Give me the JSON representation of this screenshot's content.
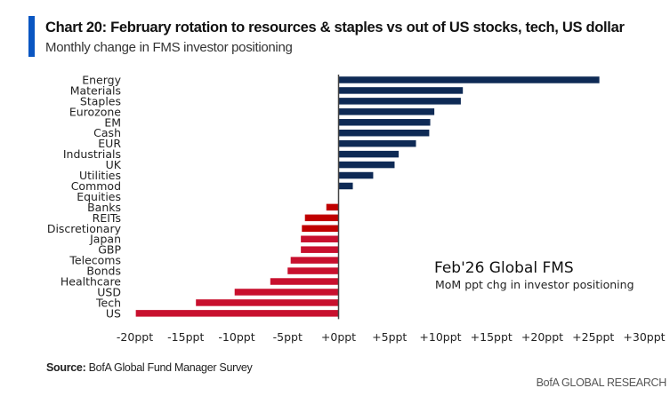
{
  "header": {
    "title": "Chart 20: February rotation to resources & staples vs out of US stocks, tech, US dollar",
    "subtitle": "Monthly change in FMS investor positioning"
  },
  "footer": {
    "source_label": "Source:",
    "source_text": "BofA Global Fund Manager Survey",
    "brand": "BofA GLOBAL RESEARCH"
  },
  "colors": {
    "positive": "#0e2a55",
    "negative_dark": "#c00000",
    "negative": "#c8102e",
    "axis": "#444444",
    "accent": "#0a56c2"
  },
  "chart_data": {
    "type": "bar",
    "orientation": "horizontal",
    "title": "Chart 20: February rotation to resources & staples vs out of US stocks, tech, US dollar",
    "subtitle": "Monthly change in FMS investor positioning",
    "annotation": {
      "title": "Feb'26 Global FMS",
      "subtitle": "MoM ppt chg in investor positioning",
      "placement": "bottom-right"
    },
    "categories": [
      "Energy",
      "Materials",
      "Staples",
      "Eurozone",
      "EM",
      "Cash",
      "EUR",
      "Industrials",
      "UK",
      "Utilities",
      "Commod",
      "Equities",
      "Banks",
      "REITs",
      "Discretionary",
      "Japan",
      "GBP",
      "Telecoms",
      "Bonds",
      "Healthcare",
      "USD",
      "Tech",
      "US"
    ],
    "values": [
      25.6,
      12.2,
      12.0,
      9.4,
      9.0,
      8.9,
      7.6,
      5.9,
      5.5,
      3.4,
      1.4,
      0.0,
      -1.2,
      -3.3,
      -3.6,
      -3.7,
      -3.7,
      -4.7,
      -5.0,
      -6.7,
      -10.2,
      -14.0,
      -19.9
    ],
    "unit": "ppt",
    "xlabel": "",
    "ylabel": "",
    "xlim": [
      -20,
      30
    ],
    "xticks": [
      -20,
      -15,
      -10,
      -5,
      0,
      5,
      10,
      15,
      20,
      25,
      30
    ],
    "xtick_labels": [
      "-20ppt",
      "-15ppt",
      "-10ppt",
      "-5ppt",
      "+0ppt",
      "+5ppt",
      "+10ppt",
      "+15ppt",
      "+20ppt",
      "+25ppt",
      "+30ppt"
    ],
    "grid": false,
    "legend": "none"
  }
}
